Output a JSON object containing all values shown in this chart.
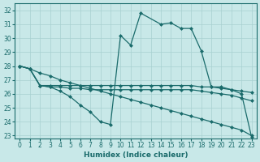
{
  "xlabel": "Humidex (Indice chaleur)",
  "background_color": "#c8e8e8",
  "grid_color": "#a8d0d0",
  "line_color": "#1a6b6b",
  "xlim": [
    -0.5,
    23.5
  ],
  "ylim": [
    22.8,
    32.5
  ],
  "xticks": [
    0,
    1,
    2,
    3,
    4,
    5,
    6,
    7,
    8,
    9,
    10,
    11,
    12,
    13,
    14,
    15,
    16,
    17,
    18,
    19,
    20,
    21,
    22,
    23
  ],
  "yticks": [
    23,
    24,
    25,
    26,
    27,
    28,
    29,
    30,
    31,
    32
  ],
  "series": [
    {
      "x": [
        0,
        1,
        2,
        3,
        4,
        5,
        6,
        7,
        8,
        9,
        10,
        11,
        12,
        14,
        15,
        16,
        17,
        18,
        19,
        20,
        21,
        22,
        23
      ],
      "y": [
        28.0,
        27.8,
        26.6,
        26.5,
        26.2,
        25.8,
        25.2,
        24.7,
        24.0,
        23.8,
        30.2,
        29.5,
        31.8,
        31.0,
        31.1,
        30.7,
        30.7,
        29.1,
        26.5,
        26.5,
        26.3,
        26.0,
        22.9
      ]
    },
    {
      "x": [
        0,
        1,
        2,
        3,
        4,
        5,
        6,
        7,
        8,
        9,
        10,
        11,
        12,
        13,
        14,
        15,
        16,
        17,
        18,
        19,
        20,
        21,
        22,
        23
      ],
      "y": [
        28.0,
        27.8,
        26.6,
        26.6,
        26.6,
        26.6,
        26.6,
        26.6,
        26.6,
        26.6,
        26.6,
        26.6,
        26.6,
        26.6,
        26.6,
        26.6,
        26.6,
        26.6,
        26.5,
        26.5,
        26.4,
        26.3,
        26.2,
        26.1
      ]
    },
    {
      "x": [
        0,
        1,
        2,
        3,
        4,
        5,
        6,
        7,
        8,
        9,
        10,
        11,
        12,
        13,
        14,
        15,
        16,
        17,
        18,
        19,
        20,
        21,
        22,
        23
      ],
      "y": [
        28.0,
        27.8,
        27.5,
        27.3,
        27.0,
        26.8,
        26.6,
        26.4,
        26.2,
        26.0,
        25.8,
        25.6,
        25.4,
        25.2,
        25.0,
        24.8,
        24.6,
        24.4,
        24.2,
        24.0,
        23.8,
        23.6,
        23.4,
        23.0
      ]
    },
    {
      "x": [
        0,
        1,
        2,
        3,
        4,
        5,
        6,
        7,
        8,
        9,
        10,
        11,
        12,
        13,
        14,
        15,
        16,
        17,
        18,
        19,
        20,
        21,
        22,
        23
      ],
      "y": [
        28.0,
        27.8,
        26.6,
        26.5,
        26.5,
        26.4,
        26.4,
        26.3,
        26.3,
        26.3,
        26.3,
        26.3,
        26.3,
        26.3,
        26.3,
        26.3,
        26.3,
        26.3,
        26.2,
        26.1,
        26.0,
        25.9,
        25.7,
        25.5
      ]
    }
  ]
}
